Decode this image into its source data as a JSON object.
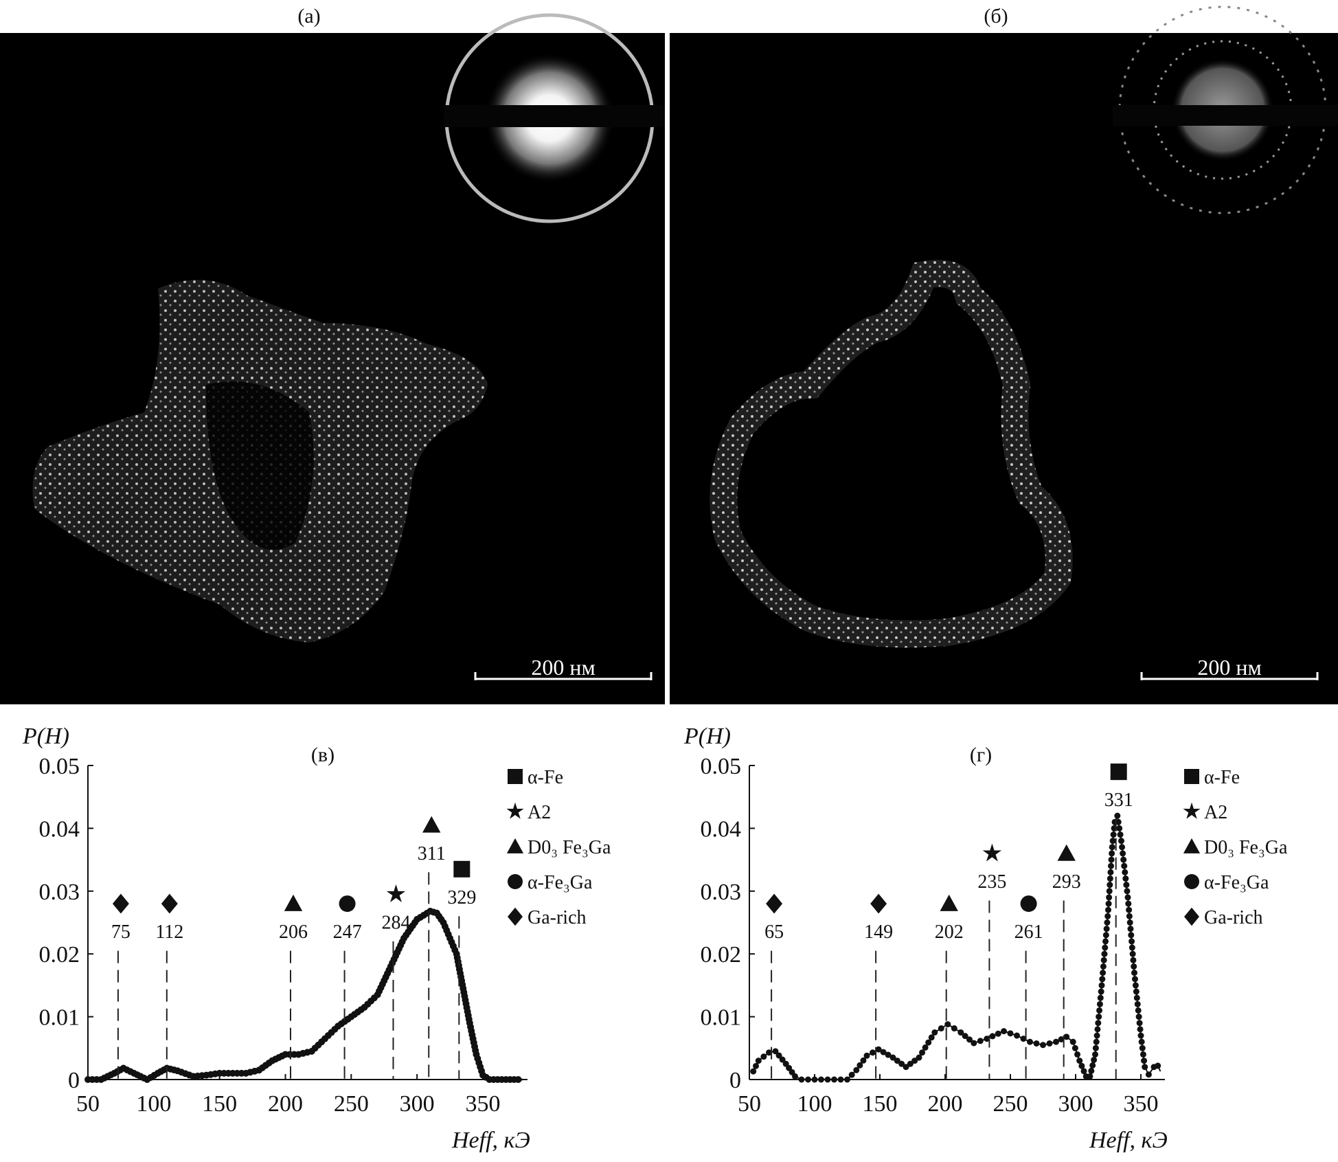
{
  "panels": {
    "a": {
      "label": "(a)",
      "scale_bar": "200 нм"
    },
    "b": {
      "label": "(б)",
      "scale_bar": "200 нм"
    }
  },
  "chart_data": [
    {
      "type": "scatter",
      "panel_label": "(в)",
      "ylabel": "P(H)",
      "xlabel": "Heff, кЭ",
      "xlim": [
        50,
        385
      ],
      "ylim": [
        0,
        0.05
      ],
      "x_ticks": [
        "50",
        "100",
        "150",
        "200",
        "250",
        "300",
        "350"
      ],
      "y_ticks": [
        "0",
        "0.01",
        "0.02",
        "0.03",
        "0.04",
        "0.05"
      ],
      "series": [
        {
          "x": [
            50,
            60,
            70,
            77,
            85,
            95,
            103,
            110,
            118,
            130,
            140,
            150,
            170,
            180,
            190,
            200,
            210,
            220,
            230,
            240,
            250,
            260,
            270,
            280,
            290,
            300,
            310,
            315,
            320,
            330,
            335,
            340,
            345,
            350,
            355,
            380
          ],
          "y": [
            0,
            0,
            0.001,
            0.0018,
            0.001,
            0,
            0.001,
            0.0018,
            0.0014,
            0.0005,
            0.0007,
            0.001,
            0.001,
            0.0015,
            0.003,
            0.004,
            0.004,
            0.0045,
            0.0065,
            0.0085,
            0.01,
            0.0115,
            0.0135,
            0.018,
            0.0225,
            0.0255,
            0.0268,
            0.0265,
            0.025,
            0.02,
            0.0145,
            0.009,
            0.004,
            0.0007,
            0,
            0
          ]
        }
      ],
      "annotations": [
        {
          "marker": "diamond",
          "x": 75,
          "y": 0.028,
          "label": "75"
        },
        {
          "marker": "diamond",
          "x": 112,
          "y": 0.028,
          "label": "112"
        },
        {
          "marker": "triangle",
          "x": 206,
          "y": 0.028,
          "label": "206"
        },
        {
          "marker": "circle",
          "x": 247,
          "y": 0.028,
          "label": "247"
        },
        {
          "marker": "star",
          "x": 284,
          "y": 0.0295,
          "label": "284"
        },
        {
          "marker": "triangle",
          "x": 311,
          "y": 0.0405,
          "label": "311"
        },
        {
          "marker": "square",
          "x": 334,
          "y": 0.0335,
          "label": "329"
        }
      ],
      "legend": {
        "placement": "right",
        "entries": [
          {
            "marker": "square",
            "label": "α-Fe"
          },
          {
            "marker": "star",
            "label": "A2"
          },
          {
            "marker": "triangle",
            "label": "D0₃ Fe₃Ga"
          },
          {
            "marker": "circle",
            "label": "α-Fe₃Ga"
          },
          {
            "marker": "diamond",
            "label": "Ga-rich"
          }
        ]
      }
    },
    {
      "type": "line",
      "panel_label": "(г)",
      "ylabel": "P(H)",
      "xlabel": "Heff, кЭ",
      "xlim": [
        50,
        385
      ],
      "ylim": [
        0,
        0.05
      ],
      "x_ticks": [
        "50",
        "100",
        "150",
        "200",
        "250",
        "300",
        "350"
      ],
      "y_ticks": [
        "0",
        "0.01",
        "0.02",
        "0.03",
        "0.04",
        "0.05"
      ],
      "series": [
        {
          "x": [
            53,
            57,
            65,
            70,
            78,
            85,
            90,
            125,
            132,
            140,
            149,
            160,
            170,
            180,
            192,
            202,
            212,
            222,
            232,
            245,
            255,
            265,
            275,
            285,
            293,
            298,
            303,
            308,
            311,
            315,
            320,
            325,
            328,
            330,
            332,
            335,
            340,
            345,
            350,
            353,
            356,
            360,
            363,
            365
          ],
          "y": [
            0.0013,
            0.003,
            0.0043,
            0.0045,
            0.0025,
            0.0005,
            0,
            0,
            0.0015,
            0.0038,
            0.0048,
            0.0035,
            0.002,
            0.0035,
            0.0075,
            0.0088,
            0.0075,
            0.0058,
            0.0065,
            0.0077,
            0.007,
            0.006,
            0.0055,
            0.006,
            0.0068,
            0.006,
            0.003,
            0.0005,
            0.0005,
            0.004,
            0.015,
            0.027,
            0.037,
            0.041,
            0.042,
            0.038,
            0.029,
            0.017,
            0.007,
            0.002,
            0.0008,
            0.002,
            0.0022,
            0.0013
          ]
        }
      ],
      "annotations": [
        {
          "marker": "diamond",
          "x": 69,
          "y": 0.028,
          "label": "65"
        },
        {
          "marker": "diamond",
          "x": 149,
          "y": 0.028,
          "label": "149"
        },
        {
          "marker": "triangle",
          "x": 203,
          "y": 0.028,
          "label": "202"
        },
        {
          "marker": "star",
          "x": 236,
          "y": 0.036,
          "label": "235"
        },
        {
          "marker": "circle",
          "x": 264,
          "y": 0.028,
          "label": "261"
        },
        {
          "marker": "triangle",
          "x": 293,
          "y": 0.036,
          "label": "293"
        },
        {
          "marker": "square",
          "x": 333,
          "y": 0.049,
          "label": "331"
        }
      ],
      "legend": {
        "placement": "right",
        "entries": [
          {
            "marker": "square",
            "label": "α-Fe"
          },
          {
            "marker": "star",
            "label": "A2"
          },
          {
            "marker": "triangle",
            "label": "D0₃ Fe₃Ga"
          },
          {
            "marker": "circle",
            "label": "α-Fe₃Ga"
          },
          {
            "marker": "diamond",
            "label": "Ga-rich"
          }
        ]
      }
    }
  ]
}
